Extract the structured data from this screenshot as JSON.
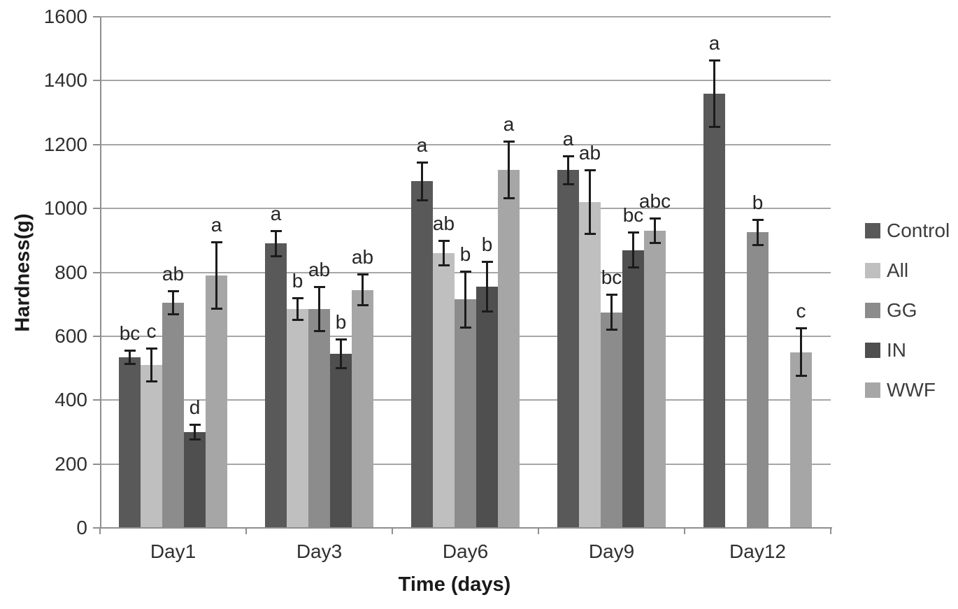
{
  "chart_data": {
    "type": "bar",
    "title": "",
    "xlabel": "Time (days)",
    "ylabel": "Hardness(g)",
    "categories": [
      "Day1",
      "Day3",
      "Day6",
      "Day9",
      "Day12"
    ],
    "ylim": [
      0,
      1600
    ],
    "ytick_step": 200,
    "grid": true,
    "legend_position": "right",
    "error_bars": true,
    "series": [
      {
        "name": "Control",
        "color": "#595959",
        "values": [
          535,
          890,
          1085,
          1120,
          1360
        ],
        "errors": [
          22,
          40,
          60,
          45,
          105
        ],
        "sig_labels": [
          "bc",
          "a",
          "a",
          "a",
          "a"
        ]
      },
      {
        "name": "All",
        "color": "#bfbfbf",
        "values": [
          510,
          685,
          860,
          1020,
          null
        ],
        "errors": [
          52,
          35,
          40,
          100,
          null
        ],
        "sig_labels": [
          "c",
          "b",
          "ab",
          "ab",
          null
        ]
      },
      {
        "name": "GG",
        "color": "#8c8c8c",
        "values": [
          705,
          685,
          715,
          675,
          925
        ],
        "errors": [
          38,
          70,
          88,
          55,
          40
        ],
        "sig_labels": [
          "ab",
          "ab",
          "b",
          "bc",
          "b"
        ]
      },
      {
        "name": "IN",
        "color": "#4f4f4f",
        "values": [
          300,
          545,
          755,
          870,
          null
        ],
        "errors": [
          25,
          45,
          78,
          55,
          null
        ],
        "sig_labels": [
          "d",
          "b",
          "b",
          "bc",
          null
        ]
      },
      {
        "name": "WWF",
        "color": "#a6a6a6",
        "values": [
          790,
          745,
          1120,
          930,
          550
        ],
        "errors": [
          105,
          50,
          90,
          40,
          75
        ],
        "sig_labels": [
          "a",
          "ab",
          "a",
          "abc",
          "c"
        ]
      }
    ]
  }
}
